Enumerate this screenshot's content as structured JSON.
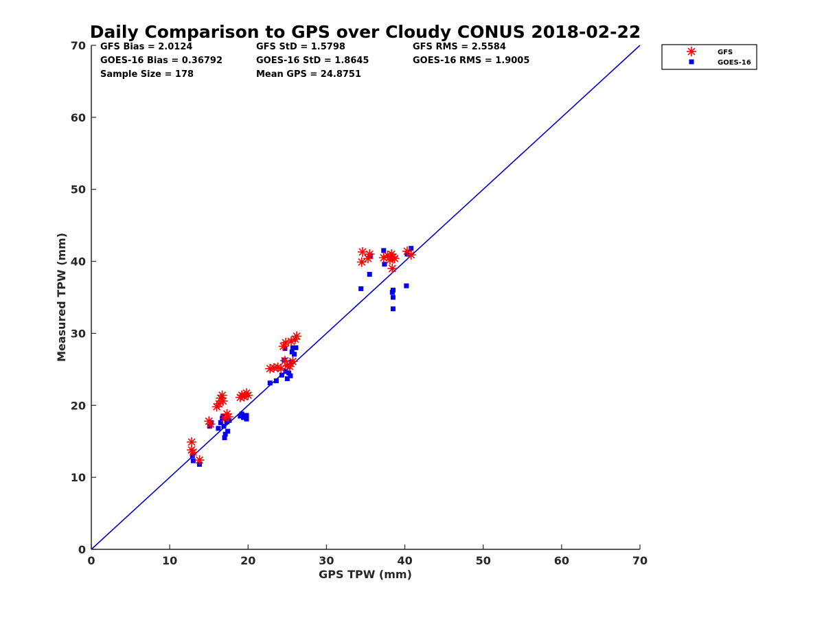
{
  "chart_data": {
    "type": "scatter",
    "title": "Daily Comparison to GPS over Cloudy CONUS 2018-02-22",
    "xlabel": "GPS TPW (mm)",
    "ylabel": "Measured TPW (mm)",
    "xlim": [
      0,
      70
    ],
    "ylim": [
      0,
      70
    ],
    "xticks": [
      "0",
      "10",
      "20",
      "30",
      "40",
      "50",
      "60",
      "70"
    ],
    "yticks": [
      "0",
      "10",
      "20",
      "30",
      "40",
      "50",
      "60",
      "70"
    ],
    "grid": false,
    "legend": {
      "placement": "outside-top-right"
    },
    "stats": {
      "gfs_bias": "GFS Bias = 2.0124",
      "goes_bias": "GOES-16 Bias = 0.36792",
      "sample_size": "Sample Size = 178",
      "gfs_std": "GFS StD = 1.5798",
      "goes_std": "GOES-16 StD = 1.8645",
      "mean_gps": "Mean GPS = 24.8751",
      "gfs_rms": "GFS RMS = 2.5584",
      "goes_rms": "GOES-16 RMS = 1.9005"
    },
    "reference_line": {
      "x": [
        0,
        70
      ],
      "y": [
        0,
        70
      ],
      "color": "#0000cc"
    },
    "series": [
      {
        "name": "GFS",
        "marker": "asterisk",
        "color": "#ff0000",
        "points": [
          [
            12.8,
            14.9
          ],
          [
            12.8,
            13.8
          ],
          [
            13.0,
            13.5
          ],
          [
            13.8,
            12.4
          ],
          [
            15.0,
            17.8
          ],
          [
            15.2,
            17.4
          ],
          [
            16.0,
            19.8
          ],
          [
            16.3,
            20.2
          ],
          [
            16.5,
            21.0
          ],
          [
            16.7,
            21.4
          ],
          [
            16.8,
            20.6
          ],
          [
            17.0,
            18.2
          ],
          [
            17.3,
            18.8
          ],
          [
            17.5,
            18.4
          ],
          [
            19.0,
            21.1
          ],
          [
            19.2,
            21.4
          ],
          [
            19.5,
            21.2
          ],
          [
            19.8,
            21.7
          ],
          [
            20.0,
            21.4
          ],
          [
            22.8,
            25.1
          ],
          [
            23.3,
            25.2
          ],
          [
            23.8,
            25.3
          ],
          [
            24.2,
            25.1
          ],
          [
            24.5,
            28.2
          ],
          [
            24.8,
            28.7
          ],
          [
            25.0,
            25.5
          ],
          [
            25.3,
            25.4
          ],
          [
            25.5,
            28.9
          ],
          [
            25.7,
            26.1
          ],
          [
            26.0,
            29.2
          ],
          [
            26.2,
            29.6
          ],
          [
            24.7,
            26.2
          ],
          [
            34.5,
            39.9
          ],
          [
            34.6,
            41.3
          ],
          [
            35.3,
            40.4
          ],
          [
            35.5,
            41.0
          ],
          [
            37.3,
            40.5
          ],
          [
            37.8,
            40.8
          ],
          [
            38.1,
            40.2
          ],
          [
            38.3,
            41.0
          ],
          [
            38.5,
            40.6
          ],
          [
            38.7,
            40.4
          ],
          [
            38.4,
            39.0
          ],
          [
            40.3,
            41.4
          ],
          [
            40.8,
            40.9
          ]
        ]
      },
      {
        "name": "GOES-16",
        "marker": "square",
        "color": "#0000ee",
        "points": [
          [
            12.9,
            13.0
          ],
          [
            13.0,
            12.3
          ],
          [
            13.8,
            11.8
          ],
          [
            15.1,
            17.1
          ],
          [
            15.3,
            17.6
          ],
          [
            16.2,
            16.8
          ],
          [
            16.5,
            17.6
          ],
          [
            16.7,
            18.2
          ],
          [
            16.9,
            17.1
          ],
          [
            17.0,
            15.5
          ],
          [
            17.1,
            16.0
          ],
          [
            17.3,
            17.7
          ],
          [
            17.4,
            16.4
          ],
          [
            17.6,
            17.9
          ],
          [
            16.8,
            18.5
          ],
          [
            19.0,
            18.5
          ],
          [
            19.2,
            18.8
          ],
          [
            19.4,
            18.3
          ],
          [
            19.8,
            18.1
          ],
          [
            19.8,
            18.6
          ],
          [
            22.8,
            23.1
          ],
          [
            23.6,
            23.4
          ],
          [
            24.3,
            24.2
          ],
          [
            24.6,
            26.3
          ],
          [
            24.8,
            24.7
          ],
          [
            25.0,
            23.7
          ],
          [
            25.2,
            24.5
          ],
          [
            25.4,
            24.1
          ],
          [
            25.5,
            26.0
          ],
          [
            25.6,
            27.4
          ],
          [
            25.7,
            28.0
          ],
          [
            25.9,
            27.1
          ],
          [
            26.1,
            28.0
          ],
          [
            24.7,
            27.9
          ],
          [
            34.4,
            36.2
          ],
          [
            35.5,
            38.2
          ],
          [
            35.6,
            40.8
          ],
          [
            37.3,
            41.5
          ],
          [
            37.4,
            39.6
          ],
          [
            38.3,
            40.4
          ],
          [
            38.4,
            35.7
          ],
          [
            38.5,
            35.0
          ],
          [
            38.5,
            36.0
          ],
          [
            38.5,
            33.4
          ],
          [
            40.2,
            36.6
          ],
          [
            40.3,
            41.0
          ],
          [
            40.8,
            41.8
          ]
        ]
      }
    ]
  }
}
